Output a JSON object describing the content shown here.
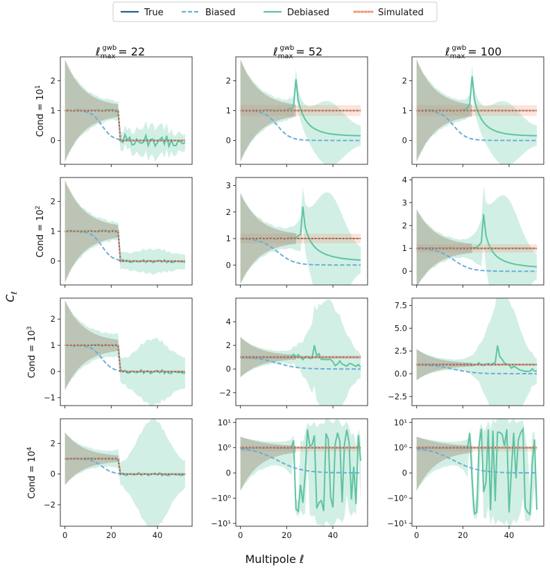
{
  "legend": [
    {
      "key": "true",
      "label": "True",
      "color": "#2b5f8e",
      "style": "solid"
    },
    {
      "key": "biased",
      "label": "Biased",
      "color": "#6aaed6",
      "style": "dashed"
    },
    {
      "key": "debiased",
      "label": "Debiased",
      "color": "#5ec4a0",
      "style": "solid"
    },
    {
      "key": "simulated",
      "label": "Simulated",
      "color": "#f2956a",
      "style": "dotted"
    }
  ],
  "column_titles": [
    {
      "symbol": "ℓ",
      "sub": "max",
      "sup": "gwb",
      "value": "= 22"
    },
    {
      "symbol": "ℓ",
      "sub": "max",
      "sup": "gwb",
      "value": "= 52"
    },
    {
      "symbol": "ℓ",
      "sub": "max",
      "sup": "gwb",
      "value": "= 100"
    }
  ],
  "row_labels": [
    {
      "base": "Cond = 10",
      "exp": "1"
    },
    {
      "base": "Cond = 10",
      "exp": "2"
    },
    {
      "base": "Cond = 10",
      "exp": "3"
    },
    {
      "base": "Cond = 10",
      "exp": "4"
    }
  ],
  "ylabel": {
    "symbol": "C",
    "sub": "ℓ"
  },
  "xlabel": {
    "text": "Multipole ",
    "symbol": "ℓ"
  },
  "chart_data": {
    "type": "line",
    "layout": "4x3 small multiples",
    "x_range": [
      0,
      52
    ],
    "xlim": [
      -2,
      55
    ],
    "x_ticks": [
      0,
      20,
      40
    ],
    "x_tick_labels": [
      "0",
      "20",
      "40"
    ],
    "series_names": [
      "True",
      "Biased",
      "Debiased",
      "Simulated"
    ],
    "panels": [
      {
        "row": 0,
        "col": 0,
        "ylim": [
          -0.8,
          2.8
        ],
        "yscale": "linear",
        "yticks": [
          0,
          1,
          2
        ],
        "ytick_labels": [
          "0",
          "1",
          "2"
        ],
        "cutoff": 23,
        "decay": 5,
        "spike": null,
        "noise": 0.2,
        "err_tail": 0.15,
        "err_peak": 0.3,
        "sim_band": 0.0
      },
      {
        "row": 0,
        "col": 1,
        "ylim": [
          -0.8,
          2.8
        ],
        "yscale": "linear",
        "yticks": [
          0,
          1,
          2
        ],
        "ytick_labels": [
          "0",
          "1",
          "2"
        ],
        "cutoff": null,
        "decay": 6,
        "spike": {
          "x": 24,
          "h": 2.05
        },
        "noise": 0.0,
        "err_tail": 0.15,
        "err_peak": 0.85,
        "sim_band": 0.18
      },
      {
        "row": 0,
        "col": 2,
        "ylim": [
          -0.8,
          2.8
        ],
        "yscale": "linear",
        "yticks": [
          0,
          1,
          2
        ],
        "ytick_labels": [
          "0",
          "1",
          "2"
        ],
        "cutoff": null,
        "decay": 6,
        "spike": {
          "x": 24,
          "h": 2.15
        },
        "noise": 0.0,
        "err_tail": 0.15,
        "err_peak": 0.85,
        "sim_band": 0.18
      },
      {
        "row": 1,
        "col": 0,
        "ylim": [
          -0.8,
          2.8
        ],
        "yscale": "linear",
        "yticks": [
          0,
          1,
          2
        ],
        "ytick_labels": [
          "0",
          "1",
          "2"
        ],
        "cutoff": 23,
        "decay": 5,
        "spike": null,
        "noise": 0.05,
        "err_tail": 0.12,
        "err_peak": 0.2,
        "sim_band": 0.0
      },
      {
        "row": 1,
        "col": 1,
        "ylim": [
          -0.75,
          3.3
        ],
        "yscale": "linear",
        "yticks": [
          0,
          1,
          2,
          3
        ],
        "ytick_labels": [
          "0",
          "1",
          "2",
          "3"
        ],
        "cutoff": null,
        "decay": 8,
        "spike": {
          "x": 27,
          "h": 2.2
        },
        "noise": 0.0,
        "err_tail": 0.2,
        "err_peak": 2.1,
        "sim_band": 0.18
      },
      {
        "row": 1,
        "col": 2,
        "ylim": [
          -0.6,
          4.1
        ],
        "yscale": "linear",
        "yticks": [
          0,
          1,
          2,
          3,
          4
        ],
        "ytick_labels": [
          "0",
          "1",
          "2",
          "3",
          "4"
        ],
        "cutoff": null,
        "decay": 8,
        "spike": {
          "x": 29,
          "h": 2.5
        },
        "noise": 0.0,
        "err_tail": 0.2,
        "err_peak": 2.6,
        "sim_band": 0.18
      },
      {
        "row": 2,
        "col": 0,
        "ylim": [
          -1.3,
          2.8
        ],
        "yscale": "linear",
        "yticks": [
          -1,
          0,
          1,
          2
        ],
        "ytick_labels": [
          "−1",
          "0",
          "1",
          "2"
        ],
        "cutoff": 23,
        "decay": 5,
        "spike": null,
        "noise": 0.08,
        "err_tail": 0.4,
        "err_peak": 0.85,
        "sim_band": 0.0
      },
      {
        "row": 2,
        "col": 1,
        "ylim": [
          -3.1,
          6.0
        ],
        "yscale": "linear",
        "yticks": [
          -2,
          0,
          2,
          4
        ],
        "ytick_labels": [
          "−2",
          "0",
          "2",
          "4"
        ],
        "cutoff": null,
        "decay": 10,
        "spike": {
          "x": 32,
          "h": 1.8
        },
        "noise": 0.25,
        "err_tail": 0.5,
        "err_peak": 4.6,
        "sim_band": 0.15
      },
      {
        "row": 2,
        "col": 2,
        "ylim": [
          -3.5,
          8.3
        ],
        "yscale": "linear",
        "yticks": [
          -2.5,
          0,
          2.5,
          5,
          7.5
        ],
        "ytick_labels": [
          "−2.5",
          "0.0",
          "2.5",
          "5.0",
          "7.5"
        ],
        "cutoff": null,
        "decay": 10,
        "spike": {
          "x": 35,
          "h": 3.0
        },
        "noise": 0.2,
        "err_tail": 0.6,
        "err_peak": 6.9,
        "sim_band": 0.15
      },
      {
        "row": 3,
        "col": 0,
        "ylim": [
          -3.4,
          3.6
        ],
        "yscale": "linear",
        "yticks": [
          -2,
          0,
          2
        ],
        "ytick_labels": [
          "−2",
          "0",
          "2"
        ],
        "cutoff": 23,
        "decay": 5,
        "spike": null,
        "noise": 0.1,
        "err_tail": 0.5,
        "err_peak": 3.1,
        "sim_band": 0.0
      },
      {
        "row": 3,
        "col": 1,
        "ylim": [
          -13,
          14
        ],
        "yscale": "symlog",
        "yticks": [
          -10,
          -1,
          0,
          1,
          10
        ],
        "ytick_labels": [
          "−10¹",
          "−10⁰",
          "0",
          "10⁰",
          "10¹"
        ],
        "cutoff": null,
        "decay": 12,
        "spike": null,
        "noise": 1.5,
        "err_tail": 1.0,
        "err_peak": 11,
        "sim_band": 0.15
      },
      {
        "row": 3,
        "col": 2,
        "ylim": [
          -13,
          14
        ],
        "yscale": "symlog",
        "yticks": [
          -10,
          -1,
          0,
          1,
          10
        ],
        "ytick_labels": [
          "−10¹",
          "−10⁰",
          "0",
          "10⁰",
          "10¹"
        ],
        "cutoff": null,
        "decay": 12,
        "spike": null,
        "noise": 1.8,
        "err_tail": 1.0,
        "err_peak": 12,
        "sim_band": 0.15
      }
    ]
  }
}
